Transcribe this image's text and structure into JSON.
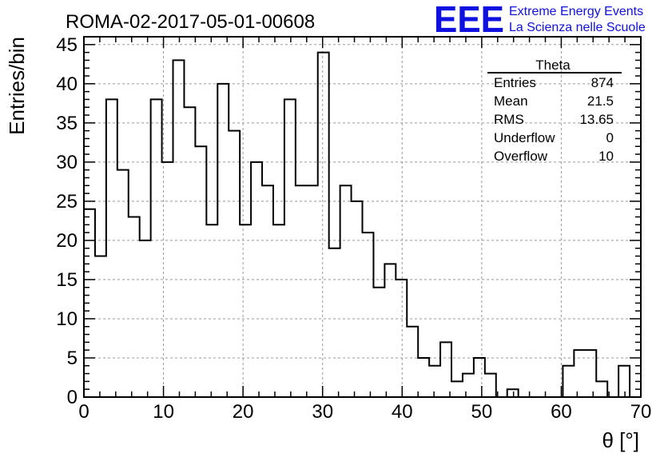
{
  "chart_data": {
    "type": "histogram",
    "title": "ROMA-02-2017-05-01-00608",
    "xlabel": "θ [°]",
    "ylabel": "Entries/bin",
    "xlim": [
      0,
      70
    ],
    "ylim": [
      0,
      46
    ],
    "grid": true,
    "x_ticks": [
      "0",
      "10",
      "20",
      "30",
      "40",
      "50",
      "60",
      "70"
    ],
    "y_ticks": [
      "0",
      "5",
      "10",
      "15",
      "20",
      "25",
      "30",
      "35",
      "40",
      "45"
    ],
    "bin_width": 1.4,
    "bin_edges_start": 0,
    "values": [
      24,
      18,
      38,
      29,
      23,
      20,
      38,
      30,
      43,
      37,
      32,
      22,
      40,
      34,
      22,
      30,
      27,
      22,
      38,
      27,
      27,
      44,
      19,
      27,
      25,
      21,
      14,
      17,
      15,
      9,
      5,
      4,
      7,
      2,
      3,
      5,
      3,
      0,
      1,
      0,
      0,
      0,
      0,
      4,
      6,
      6,
      2,
      0,
      4,
      0
    ],
    "color": "#000000"
  },
  "stats": {
    "name": "Theta",
    "rows": [
      {
        "label": "Entries",
        "value": "874"
      },
      {
        "label": "Mean",
        "value": "21.5"
      },
      {
        "label": "RMS",
        "value": "13.65"
      },
      {
        "label": "Underflow",
        "value": "0"
      },
      {
        "label": "Overflow",
        "value": "10"
      }
    ]
  },
  "logo": {
    "mark": "EEE",
    "line1": "Extreme Energy Events",
    "line2": "La Scienza nelle Scuole",
    "color": "#1010e0"
  }
}
